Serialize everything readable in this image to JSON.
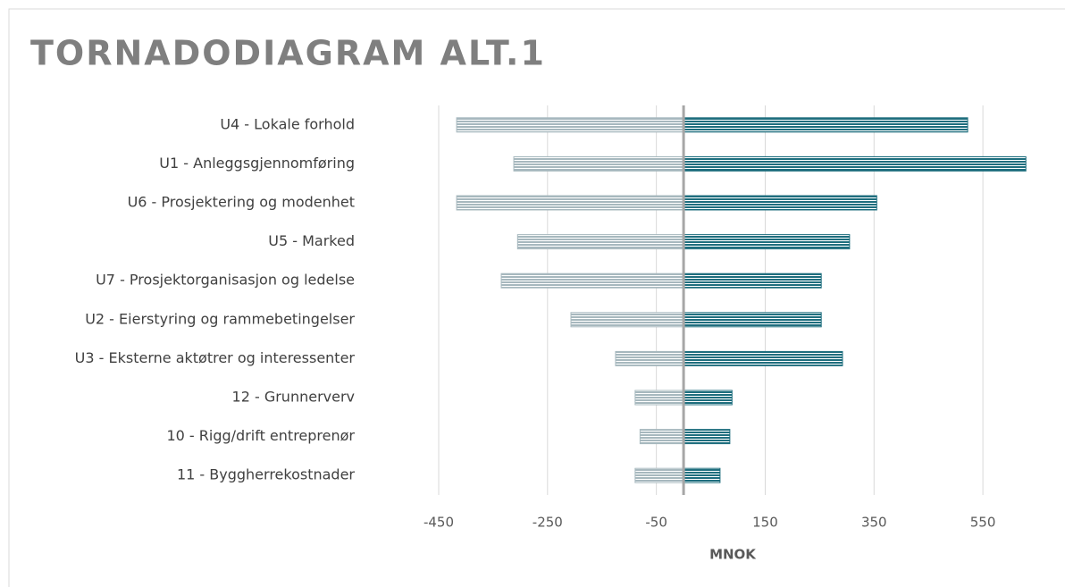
{
  "chart_data": {
    "type": "tornado",
    "title": "TORNADODIAGRAM ALT.1",
    "xlabel": "MNOK",
    "categories": [
      "U4  - Lokale forhold",
      "U1 - Anleggsgjennomføring",
      "U6 - Prosjektering og modenhet",
      "U5 - Marked",
      "U7 - Prosjektorganisasjon og ledelse",
      "U2 - Eierstyring og rammebetingelser",
      "U3 - Eksterne aktøtrer og interessenter",
      "12 - Grunnerverv",
      "10 - Rigg/drift entreprenør",
      "11 - Byggherrekostnader"
    ],
    "series": [
      {
        "color": "#a7b8be",
        "values": [
          -417,
          -312,
          -417,
          -305,
          -335,
          -207,
          -125,
          -89,
          -80,
          -89
        ]
      },
      {
        "color": "#1f6e7e",
        "values": [
          522,
          629,
          355,
          305,
          253,
          253,
          292,
          89,
          85,
          67
        ]
      }
    ],
    "xlim": [
      -450,
      650
    ],
    "xticks": [
      -450,
      -250,
      -50,
      150,
      350,
      550
    ],
    "grid": true
  }
}
